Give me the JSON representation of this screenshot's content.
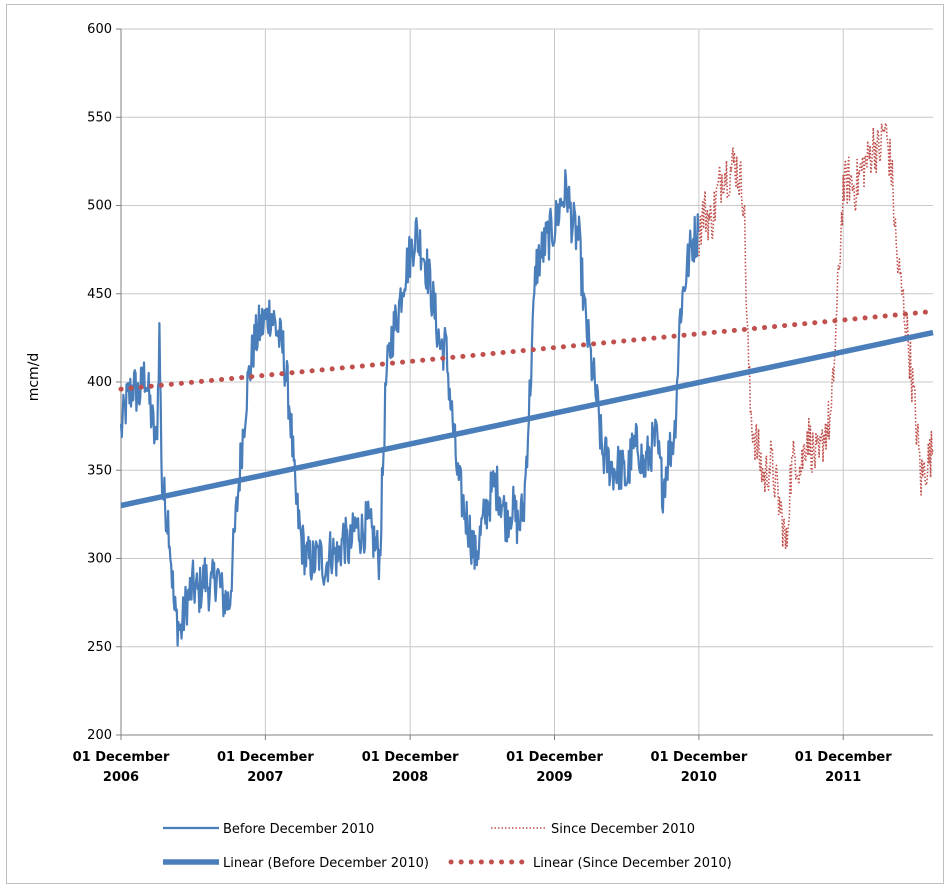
{
  "chart_data": {
    "type": "line",
    "title": "",
    "xlabel": "",
    "ylabel": "mcm/d",
    "ylim": [
      200,
      600
    ],
    "yticks": [
      200,
      250,
      300,
      350,
      400,
      450,
      500,
      550,
      600
    ],
    "xlim": [
      "2006-12-01",
      "2012-07-15"
    ],
    "xticks": [
      {
        "date": "2006-12-01",
        "line1": "01 December",
        "line2": "2006"
      },
      {
        "date": "2007-12-01",
        "line1": "01 December",
        "line2": "2007"
      },
      {
        "date": "2008-12-01",
        "line1": "01 December",
        "line2": "2008"
      },
      {
        "date": "2009-12-01",
        "line1": "01 December",
        "line2": "2009"
      },
      {
        "date": "2010-12-01",
        "line1": "01 December",
        "line2": "2010"
      },
      {
        "date": "2011-12-01",
        "line1": "01 December",
        "line2": "2011"
      }
    ],
    "grid": true,
    "legend_position": "bottom",
    "series": [
      {
        "name": "Before December 2010",
        "style": "solid",
        "color": "#4a7ebb",
        "points": [
          [
            "2006-12-01",
            372
          ],
          [
            "2006-12-15",
            388
          ],
          [
            "2007-01-01",
            398
          ],
          [
            "2007-01-15",
            392
          ],
          [
            "2007-02-01",
            405
          ],
          [
            "2007-02-15",
            382
          ],
          [
            "2007-03-01",
            362
          ],
          [
            "2007-03-08",
            428
          ],
          [
            "2007-03-15",
            340
          ],
          [
            "2007-04-01",
            320
          ],
          [
            "2007-04-15",
            270
          ],
          [
            "2007-05-01",
            258
          ],
          [
            "2007-05-15",
            275
          ],
          [
            "2007-06-01",
            285
          ],
          [
            "2007-06-15",
            280
          ],
          [
            "2007-07-01",
            290
          ],
          [
            "2007-07-15",
            282
          ],
          [
            "2007-08-01",
            292
          ],
          [
            "2007-08-15",
            278
          ],
          [
            "2007-09-01",
            275
          ],
          [
            "2007-09-15",
            315
          ],
          [
            "2007-10-01",
            360
          ],
          [
            "2007-10-15",
            395
          ],
          [
            "2007-11-01",
            420
          ],
          [
            "2007-11-15",
            430
          ],
          [
            "2007-12-01",
            435
          ],
          [
            "2007-12-15",
            440
          ],
          [
            "2008-01-01",
            428
          ],
          [
            "2008-01-15",
            418
          ],
          [
            "2008-02-01",
            385
          ],
          [
            "2008-02-15",
            335
          ],
          [
            "2008-03-01",
            310
          ],
          [
            "2008-03-15",
            300
          ],
          [
            "2008-04-01",
            298
          ],
          [
            "2008-04-15",
            302
          ],
          [
            "2008-05-01",
            295
          ],
          [
            "2008-05-15",
            305
          ],
          [
            "2008-06-01",
            300
          ],
          [
            "2008-06-15",
            312
          ],
          [
            "2008-07-01",
            305
          ],
          [
            "2008-07-15",
            318
          ],
          [
            "2008-08-01",
            315
          ],
          [
            "2008-08-15",
            320
          ],
          [
            "2008-09-01",
            310
          ],
          [
            "2008-09-15",
            300
          ],
          [
            "2008-10-01",
            400
          ],
          [
            "2008-10-15",
            425
          ],
          [
            "2008-11-01",
            440
          ],
          [
            "2008-11-15",
            460
          ],
          [
            "2008-12-01",
            472
          ],
          [
            "2008-12-15",
            485
          ],
          [
            "2009-01-01",
            475
          ],
          [
            "2009-01-15",
            462
          ],
          [
            "2009-02-01",
            440
          ],
          [
            "2009-02-15",
            420
          ],
          [
            "2009-03-01",
            420
          ],
          [
            "2009-03-15",
            385
          ],
          [
            "2009-04-01",
            345
          ],
          [
            "2009-04-15",
            330
          ],
          [
            "2009-05-01",
            315
          ],
          [
            "2009-05-15",
            300
          ],
          [
            "2009-06-01",
            318
          ],
          [
            "2009-06-15",
            330
          ],
          [
            "2009-07-01",
            342
          ],
          [
            "2009-07-15",
            338
          ],
          [
            "2009-08-01",
            322
          ],
          [
            "2009-08-15",
            330
          ],
          [
            "2009-09-01",
            318
          ],
          [
            "2009-09-15",
            330
          ],
          [
            "2009-10-01",
            400
          ],
          [
            "2009-10-15",
            465
          ],
          [
            "2009-11-01",
            475
          ],
          [
            "2009-11-15",
            482
          ],
          [
            "2009-12-01",
            488
          ],
          [
            "2009-12-15",
            500
          ],
          [
            "2010-01-01",
            510
          ],
          [
            "2010-01-15",
            490
          ],
          [
            "2010-02-01",
            480
          ],
          [
            "2010-02-15",
            440
          ],
          [
            "2010-03-01",
            415
          ],
          [
            "2010-03-15",
            395
          ],
          [
            "2010-04-01",
            360
          ],
          [
            "2010-04-15",
            355
          ],
          [
            "2010-05-01",
            350
          ],
          [
            "2010-05-15",
            352
          ],
          [
            "2010-06-01",
            345
          ],
          [
            "2010-06-15",
            360
          ],
          [
            "2010-07-01",
            365
          ],
          [
            "2010-07-15",
            350
          ],
          [
            "2010-08-01",
            362
          ],
          [
            "2010-08-15",
            368
          ],
          [
            "2010-09-01",
            340
          ],
          [
            "2010-09-15",
            358
          ],
          [
            "2010-10-01",
            372
          ],
          [
            "2010-10-15",
            440
          ],
          [
            "2010-11-01",
            465
          ],
          [
            "2010-11-15",
            480
          ],
          [
            "2010-11-30",
            485
          ]
        ]
      },
      {
        "name": "Since December 2010",
        "style": "dotted",
        "color": "#c0504d",
        "points": [
          [
            "2010-12-01",
            485
          ],
          [
            "2010-12-15",
            498
          ],
          [
            "2011-01-01",
            490
          ],
          [
            "2011-01-15",
            505
          ],
          [
            "2011-02-01",
            520
          ],
          [
            "2011-02-15",
            518
          ],
          [
            "2011-03-01",
            525
          ],
          [
            "2011-03-15",
            515
          ],
          [
            "2011-03-25",
            505
          ],
          [
            "2011-04-01",
            440
          ],
          [
            "2011-04-10",
            385
          ],
          [
            "2011-04-20",
            370
          ],
          [
            "2011-05-01",
            360
          ],
          [
            "2011-05-15",
            345
          ],
          [
            "2011-06-01",
            355
          ],
          [
            "2011-06-15",
            340
          ],
          [
            "2011-07-01",
            320
          ],
          [
            "2011-07-10",
            305
          ],
          [
            "2011-07-20",
            345
          ],
          [
            "2011-08-01",
            360
          ],
          [
            "2011-08-15",
            350
          ],
          [
            "2011-09-01",
            372
          ],
          [
            "2011-09-15",
            360
          ],
          [
            "2011-10-01",
            355
          ],
          [
            "2011-10-15",
            372
          ],
          [
            "2011-11-01",
            380
          ],
          [
            "2011-11-15",
            440
          ],
          [
            "2011-12-01",
            510
          ],
          [
            "2011-12-15",
            515
          ],
          [
            "2012-01-01",
            510
          ],
          [
            "2012-01-15",
            520
          ],
          [
            "2012-02-01",
            525
          ],
          [
            "2012-02-15",
            535
          ],
          [
            "2012-03-01",
            530
          ],
          [
            "2012-03-15",
            545
          ],
          [
            "2012-04-01",
            520
          ],
          [
            "2012-04-15",
            470
          ],
          [
            "2012-05-01",
            445
          ],
          [
            "2012-05-15",
            420
          ],
          [
            "2012-06-01",
            380
          ],
          [
            "2012-06-15",
            345
          ],
          [
            "2012-07-01",
            355
          ],
          [
            "2012-07-15",
            362
          ]
        ]
      },
      {
        "name": "Linear (Before December 2010)",
        "style": "solid-thick",
        "color": "#4a7ebb",
        "points": [
          [
            "2006-12-01",
            330
          ],
          [
            "2012-07-15",
            428
          ]
        ]
      },
      {
        "name": "Linear (Since December 2010)",
        "style": "dotted-thick",
        "color": "#c0504d",
        "points": [
          [
            "2006-12-01",
            396
          ],
          [
            "2012-07-15",
            440
          ]
        ]
      }
    ]
  }
}
